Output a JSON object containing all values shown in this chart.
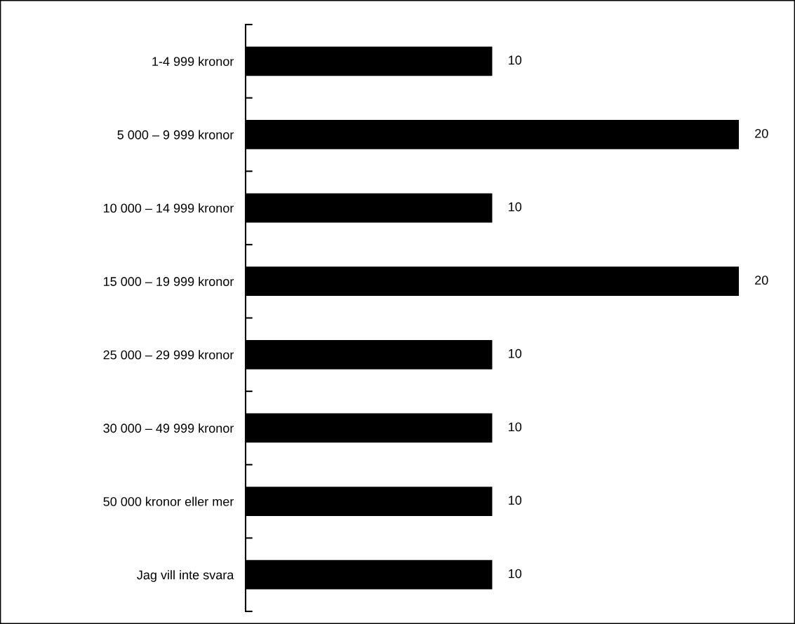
{
  "chart_data": {
    "type": "bar",
    "orientation": "horizontal",
    "categories": [
      "1-4 999 kronor",
      "5 000 – 9 999 kronor",
      "10 000 – 14 999 kronor",
      "15 000 – 19 999 kronor",
      "25 000 – 29 999 kronor",
      "30 000 – 49 999 kronor",
      "50 000 kronor eller mer",
      "Jag vill inte svara"
    ],
    "values": [
      10,
      20,
      10,
      20,
      10,
      10,
      10,
      10
    ],
    "color": "#000000",
    "data_labels": true,
    "grid": false,
    "legend": false
  }
}
